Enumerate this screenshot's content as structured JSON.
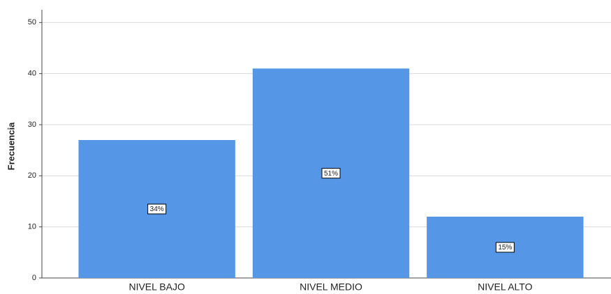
{
  "chart_data": {
    "type": "bar",
    "y_label": "Frecuencia",
    "categories": [
      "NIVEL BAJO",
      "NIVEL MEDIO",
      "NIVEL ALTO"
    ],
    "values": [
      27,
      41,
      12
    ],
    "percent_labels": [
      "34%",
      "51%",
      "15%"
    ],
    "color": "#5596e6",
    "ylim": [
      0,
      52.5
    ],
    "yticks": [
      0,
      10,
      20,
      30,
      40,
      50
    ],
    "grid": true
  }
}
